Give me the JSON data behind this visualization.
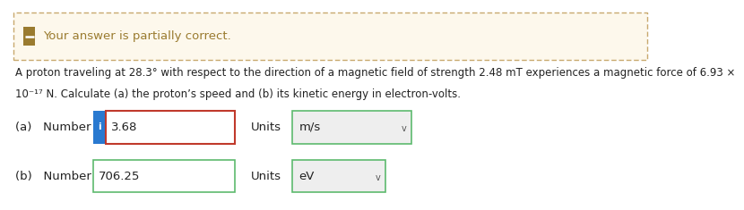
{
  "banner_bg": "#fdf8ec",
  "banner_border": "#c8a96e",
  "banner_text": "Your answer is partially correct.",
  "banner_text_color": "#9a7b2f",
  "banner_icon_bg": "#9a7b2f",
  "problem_text_line1": "A proton traveling at 28.3° with respect to the direction of a magnetic field of strength 2.48 mT experiences a magnetic force of 6.93 ×",
  "problem_text_line2": "10⁻¹⁷ N. Calculate (a) the proton’s speed and (b) its kinetic energy in electron-volts.",
  "problem_text_color": "#222222",
  "part_a_label_1": "(a)   Number",
  "part_a_value": "3.68",
  "part_a_units_value": "m/s",
  "part_b_label_1": "(b)   Number",
  "part_b_value": "706.25",
  "part_b_units_value": "eV",
  "units_label": "Units",
  "input_box_color": "#ffffff",
  "input_border_wrong": "#c0392b",
  "input_border_correct": "#5dba6e",
  "units_box_bg": "#eeeeee",
  "info_icon_bg": "#2979d0",
  "info_icon_text": "i",
  "fig_bg": "#ffffff",
  "font_size_banner": 9.5,
  "font_size_problem": 8.5,
  "font_size_parts": 9.5
}
